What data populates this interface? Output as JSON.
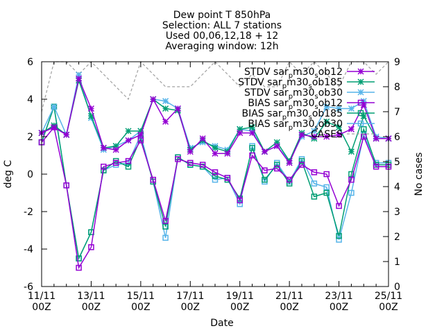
{
  "chart_data": {
    "type": "line",
    "title_lines": [
      "Dew point T 850hPa",
      "Selection: ALL      7 stations",
      "Used 00,06,12,18 + 12",
      "Averaging window: 12h"
    ],
    "xlabel": "Date",
    "ylabel": "deg C",
    "y2label": "No cases",
    "ylim": [
      -6,
      6
    ],
    "y2lim": [
      0,
      9
    ],
    "yticks": [
      "-6",
      "-4",
      "-2",
      "0",
      "2",
      "4",
      "6"
    ],
    "y2ticks": [
      "0",
      "1",
      "2",
      "3",
      "4",
      "5",
      "6",
      "7",
      "8",
      "9"
    ],
    "xticks": [
      {
        "day": 0,
        "line1": "11/11",
        "line2": "00Z"
      },
      {
        "day": 2,
        "line1": "13/11",
        "line2": "00Z"
      },
      {
        "day": 4,
        "line1": "15/11",
        "line2": "00Z"
      },
      {
        "day": 6,
        "line1": "17/11",
        "line2": "00Z"
      },
      {
        "day": 8,
        "line1": "19/11",
        "line2": "00Z"
      },
      {
        "day": 10,
        "line1": "21/11",
        "line2": "00Z"
      },
      {
        "day": 12,
        "line1": "23/11",
        "line2": "00Z"
      },
      {
        "day": 14,
        "line1": "25/11",
        "line2": "00Z"
      }
    ],
    "x": [
      0,
      0.5,
      1,
      1.5,
      2,
      2.5,
      3,
      3.5,
      4,
      4.5,
      5,
      5.5,
      6,
      6.5,
      7,
      7.5,
      8,
      8.5,
      9,
      9.5,
      10,
      10.5,
      11,
      11.5,
      12,
      12.5,
      13,
      13.5,
      14
    ],
    "legend_position": "top-right",
    "series": [
      {
        "name": "STDV sar_m30_sob12",
        "legend_parts": [
          "STDV sar",
          "p",
          "m30",
          "s",
          "ob12"
        ],
        "color": "#9400d3",
        "marker": "star",
        "axis": "y",
        "values": [
          2.2,
          2.5,
          2.1,
          5.1,
          3.5,
          1.4,
          1.3,
          1.8,
          2.1,
          4.0,
          2.8,
          3.5,
          1.2,
          1.9,
          1.1,
          1.1,
          2.2,
          2.2,
          1.2,
          1.5,
          0.6,
          2.1,
          2.0,
          2.0,
          2.1,
          2.4,
          3.7,
          1.9,
          1.9
        ]
      },
      {
        "name": "STDV sar_m30_sob185",
        "legend_parts": [
          "STDV sar",
          "p",
          "m30",
          "s",
          "ob185"
        ],
        "color": "#009e73",
        "marker": "star",
        "axis": "y",
        "values": [
          2.2,
          2.6,
          2.1,
          5.0,
          3.1,
          1.4,
          1.5,
          2.3,
          2.3,
          4.0,
          3.5,
          3.4,
          1.3,
          1.8,
          1.4,
          1.2,
          2.4,
          2.5,
          1.2,
          1.7,
          0.7,
          2.2,
          1.9,
          2.8,
          2.5,
          1.2,
          3.1,
          1.9,
          1.9
        ]
      },
      {
        "name": "STDV sar_m30_sob30",
        "legend_parts": [
          "STDV sar",
          "p",
          "m30",
          "s",
          "ob30"
        ],
        "color": "#56b4e9",
        "marker": "star",
        "axis": "y",
        "values": [
          2.2,
          3.6,
          2.1,
          5.3,
          3.0,
          1.3,
          1.5,
          1.8,
          2.3,
          4.0,
          3.9,
          3.5,
          1.4,
          1.7,
          1.5,
          1.3,
          2.4,
          2.3,
          1.2,
          1.5,
          0.7,
          2.0,
          2.3,
          3.6,
          3.5,
          3.5,
          3.9,
          2.0,
          1.9
        ]
      },
      {
        "name": "BIAS sar_m30_sob12",
        "legend_parts": [
          "BIAS sar",
          "p",
          "m30",
          "s",
          "ob12"
        ],
        "color": "#9400d3",
        "marker": "square",
        "axis": "y",
        "values": [
          1.7,
          2.5,
          -0.6,
          -5.0,
          -3.9,
          0.4,
          0.6,
          0.7,
          1.8,
          -0.3,
          -2.5,
          0.8,
          0.6,
          0.5,
          0.1,
          -0.2,
          -1.4,
          1.0,
          0.2,
          0.3,
          -0.3,
          0.5,
          0.1,
          0.0,
          -1.7,
          -0.3,
          2.0,
          0.4,
          0.4
        ]
      },
      {
        "name": "BIAS sar_m30_sob185",
        "legend_parts": [
          "BIAS sar",
          "p",
          "m30",
          "s",
          "ob185"
        ],
        "color": "#009e73",
        "marker": "square",
        "axis": "y",
        "values": [
          1.7,
          3.6,
          -0.6,
          -4.5,
          -3.1,
          0.2,
          0.7,
          0.4,
          1.9,
          -0.4,
          -2.8,
          0.9,
          0.5,
          0.4,
          -0.1,
          -0.3,
          -1.3,
          1.4,
          -0.3,
          0.5,
          -0.5,
          0.7,
          -1.2,
          -1.0,
          -3.3,
          0.0,
          2.4,
          0.5,
          0.5
        ]
      },
      {
        "name": "BIAS sar_m30_sob30",
        "legend_parts": [
          "BIAS sar",
          "p",
          "m30",
          "s",
          "ob30"
        ],
        "color": "#56b4e9",
        "marker": "square",
        "axis": "y",
        "values": [
          1.7,
          3.6,
          -0.6,
          -4.5,
          -3.1,
          0.2,
          0.5,
          0.6,
          2.1,
          -0.4,
          -3.4,
          0.9,
          0.5,
          0.4,
          -0.3,
          -0.2,
          -1.6,
          1.5,
          -0.4,
          0.6,
          -0.4,
          0.8,
          -0.5,
          -0.7,
          -3.5,
          -1.0,
          2.1,
          0.6,
          0.6
        ]
      },
      {
        "name": "CASES",
        "legend_parts": [
          "CASES",
          "",
          "",
          "",
          ""
        ],
        "color": "#a0a0a0",
        "marker": "none",
        "dash": "4,3",
        "axis": "y2",
        "values": [
          7,
          9,
          9,
          8.5,
          9,
          8.5,
          8,
          7.5,
          9,
          8.5,
          8,
          8,
          8,
          8.5,
          9,
          8.5,
          8,
          8.5,
          8,
          8,
          9,
          8.5,
          9,
          8.5,
          8,
          9,
          9,
          8.5,
          9
        ]
      }
    ]
  }
}
